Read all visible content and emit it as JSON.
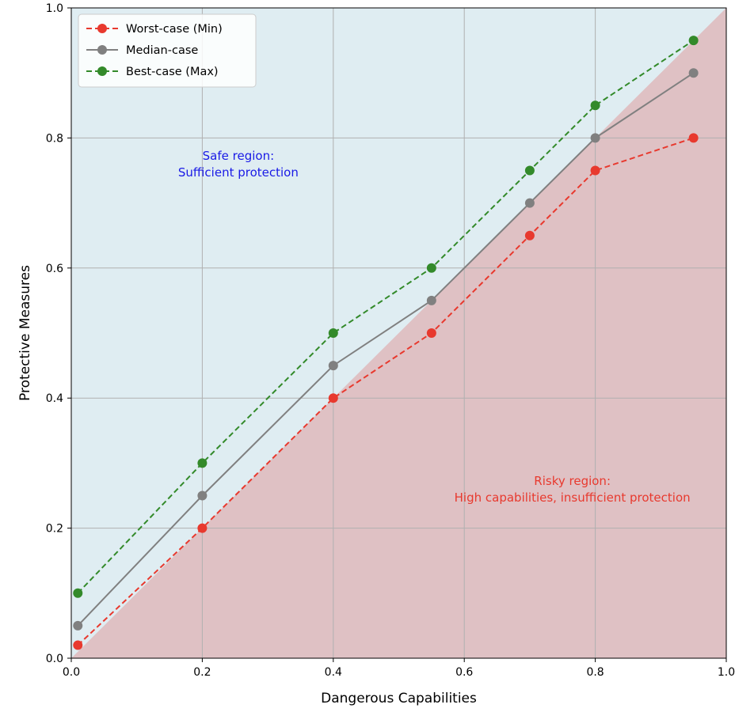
{
  "chart_data": {
    "type": "line",
    "xlabel": "Dangerous Capabilities",
    "ylabel": "Protective Measures",
    "xlim": [
      0,
      1
    ],
    "ylim": [
      0,
      1
    ],
    "xticks": [
      0.0,
      0.2,
      0.4,
      0.6,
      0.8,
      1.0
    ],
    "yticks": [
      0.0,
      0.2,
      0.4,
      0.6,
      0.8,
      1.0
    ],
    "xtick_labels": [
      "0.0",
      "0.2",
      "0.4",
      "0.6",
      "0.8",
      "1.0"
    ],
    "ytick_labels": [
      "0.0",
      "0.2",
      "0.4",
      "0.6",
      "0.8",
      "1.0"
    ],
    "grid": true,
    "legend_position": "top-left",
    "x": [
      0.01,
      0.2,
      0.4,
      0.55,
      0.7,
      0.8,
      0.95
    ],
    "series": [
      {
        "name": "Worst-case (Min)",
        "values": [
          0.02,
          0.2,
          0.4,
          0.5,
          0.65,
          0.75,
          0.8
        ],
        "color": "#e8392e",
        "linestyle": "dashed"
      },
      {
        "name": "Median-case",
        "values": [
          0.05,
          0.25,
          0.45,
          0.55,
          0.7,
          0.8,
          0.9
        ],
        "color": "#808080",
        "linestyle": "solid"
      },
      {
        "name": "Best-case (Max)",
        "values": [
          0.1,
          0.3,
          0.5,
          0.6,
          0.75,
          0.85,
          0.95
        ],
        "color": "#338a2a",
        "linestyle": "dashed"
      }
    ],
    "regions": {
      "safe_color": "#dfedf2",
      "risky_color": "#dfc1c4"
    },
    "annotations": [
      {
        "lines": [
          "Safe region:",
          "Sufficient protection"
        ],
        "x": 0.255,
        "y": 0.76,
        "color": "#1a1ae6"
      },
      {
        "lines": [
          "Risky region:",
          "High capabilities, insufficient protection"
        ],
        "x": 0.765,
        "y": 0.26,
        "color": "#e8392e"
      }
    ]
  }
}
